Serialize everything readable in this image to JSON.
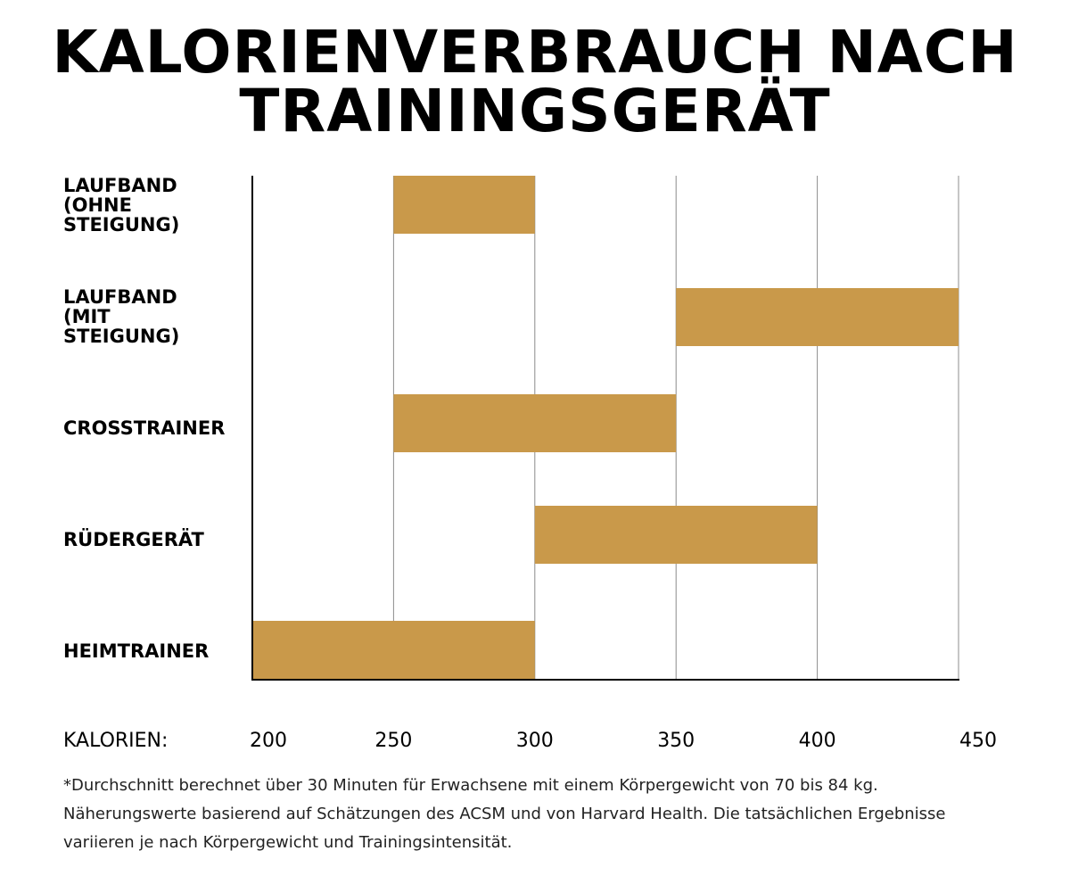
{
  "chart_data": {
    "type": "bar",
    "orientation": "horizontal-range",
    "title_lines": [
      "KALORIENVERBRAUCH NACH",
      "TRAININGSGERÄT"
    ],
    "xlabel": "KALORIEN:",
    "xlim": [
      200,
      450
    ],
    "xticks": [
      200,
      250,
      300,
      350,
      400,
      450
    ],
    "tick_labels": [
      "200",
      "250",
      "300",
      "350",
      "400",
      "450"
    ],
    "grid": true,
    "bar_color": "#C9994A",
    "series": [
      {
        "label": "LAUFBAND\n(OHNE\nSTEIGUNG)",
        "min": 250,
        "max": 300
      },
      {
        "label": "LAUFBAND\n(MIT\nSTEIGUNG)",
        "min": 350,
        "max": 450
      },
      {
        "label": "CROSSTRAINER",
        "min": 250,
        "max": 350
      },
      {
        "label": "RÜDERGERÄT",
        "min": 300,
        "max": 400
      },
      {
        "label": "HEIMTRAINER",
        "min": 200,
        "max": 300
      }
    ]
  },
  "footnote_lines": [
    "*Durchschnitt berechnet über 30 Minuten für Erwachsene mit einem Körpergewicht von 70 bis 84 kg.",
    "Näherungswerte basierend auf Schätzungen des ACSM und von Harvard Health. Die tatsächlichen Ergebnisse",
    "variieren je nach Körpergewicht und Trainingsintensität."
  ]
}
